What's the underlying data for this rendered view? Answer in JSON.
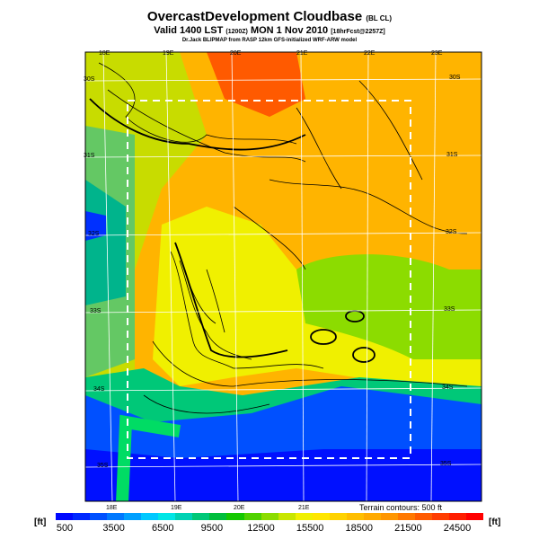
{
  "header": {
    "title": "OvercastDevelopment Cloudbase",
    "title_tag": "(BL CL)",
    "valid_line": "Valid 1400 LST",
    "valid_code": "(1200Z)",
    "valid_date": "MON 1 Nov 2010",
    "forecast": "[18hrFcst@2257Z]",
    "credit": "Dr.Jack BLIPMAP from RASP 12km GFS-initialized WRF-ARW model"
  },
  "map": {
    "lon_top": [
      "18E",
      "19E",
      "20E",
      "21E",
      "22E",
      "23E"
    ],
    "lon_bottom": [
      "18E",
      "19E",
      "20E",
      "21E"
    ],
    "lat_left": [
      "30S",
      "31S",
      "32S",
      "33S",
      "34S",
      "35S"
    ],
    "lat_right": [
      "30S",
      "31S",
      "32S",
      "33S",
      "34S",
      "35S"
    ],
    "terrain_note": "Terrain contours: 500 ft"
  },
  "colorbar": {
    "unit_left": "[ft]",
    "unit_right": "[ft]",
    "ticks": [
      "500",
      "3500",
      "6500",
      "9500",
      "12500",
      "15500",
      "18500",
      "21500",
      "24500"
    ],
    "colors": [
      "#0008ff",
      "#0028ff",
      "#0050ff",
      "#0078ff",
      "#00a0ff",
      "#00c8ff",
      "#00e6e6",
      "#00d2b4",
      "#00c878",
      "#00be3c",
      "#14c800",
      "#50d200",
      "#8cdc00",
      "#c8e600",
      "#f0f000",
      "#ffe600",
      "#ffd200",
      "#ffbe00",
      "#ffaa00",
      "#ff9600",
      "#ff7800",
      "#ff5a00",
      "#ff3c00",
      "#ff1e00",
      "#ff0000"
    ]
  }
}
